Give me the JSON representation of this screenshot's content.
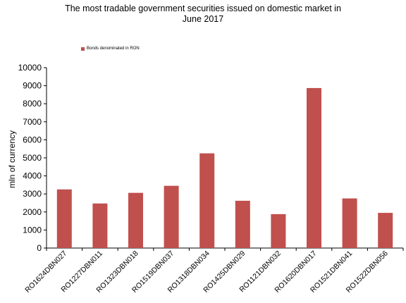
{
  "chart_data": {
    "type": "bar",
    "title_lines": [
      "The most  tradable government securities issued on domestic market in",
      "June 2017"
    ],
    "ylabel": "mln of currency",
    "xlabel": "",
    "ylim": [
      0,
      10000
    ],
    "yticks": [
      0,
      1000,
      2000,
      3000,
      4000,
      5000,
      6000,
      7000,
      8000,
      9000,
      10000
    ],
    "categories": [
      "RO1624DBN027",
      "RO1227DBN011",
      "RO1323DBN018",
      "RO1519DBN037",
      "RO1318DBN034",
      "RO1425DBN029",
      "RO1121DBN032",
      "RO1620DBN017",
      "RO1521DBN041",
      "RO1522DBN056"
    ],
    "series": [
      {
        "name": "Bonds denominated in RON",
        "color": "#c0504d",
        "values": [
          3250,
          2470,
          3060,
          3450,
          5250,
          2620,
          1880,
          8870,
          2750,
          1950
        ]
      }
    ],
    "legend_position": "top-left",
    "grid": false
  }
}
